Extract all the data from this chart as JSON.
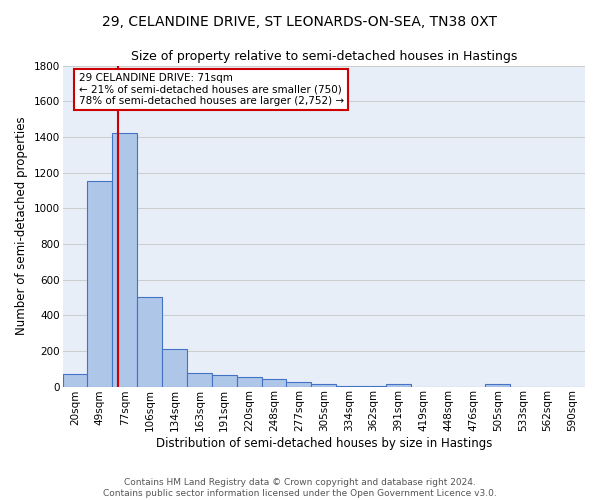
{
  "title_line1": "29, CELANDINE DRIVE, ST LEONARDS-ON-SEA, TN38 0XT",
  "title_line2": "Size of property relative to semi-detached houses in Hastings",
  "xlabel": "Distribution of semi-detached houses by size in Hastings",
  "ylabel": "Number of semi-detached properties",
  "categories": [
    "20sqm",
    "49sqm",
    "77sqm",
    "106sqm",
    "134sqm",
    "163sqm",
    "191sqm",
    "220sqm",
    "248sqm",
    "277sqm",
    "305sqm",
    "334sqm",
    "362sqm",
    "391sqm",
    "419sqm",
    "448sqm",
    "476sqm",
    "505sqm",
    "533sqm",
    "562sqm",
    "590sqm"
  ],
  "values": [
    70,
    1150,
    1420,
    500,
    210,
    75,
    65,
    55,
    40,
    25,
    12,
    5,
    3,
    12,
    0,
    0,
    0,
    12,
    0,
    0,
    0
  ],
  "bar_color": "#aec6e8",
  "bar_edge_color": "#4472c4",
  "bg_color": "#e8eef8",
  "grid_color": "#cccccc",
  "property_line_x": 1.72,
  "property_line_color": "#cc0000",
  "annotation_text": "29 CELANDINE DRIVE: 71sqm\n← 21% of semi-detached houses are smaller (750)\n78% of semi-detached houses are larger (2,752) →",
  "annotation_box_color": "#ffffff",
  "annotation_box_edge": "#cc0000",
  "ylim": [
    0,
    1800
  ],
  "yticks": [
    0,
    200,
    400,
    600,
    800,
    1000,
    1200,
    1400,
    1600,
    1800
  ],
  "footnote": "Contains HM Land Registry data © Crown copyright and database right 2024.\nContains public sector information licensed under the Open Government Licence v3.0.",
  "title_fontsize": 10,
  "subtitle_fontsize": 9,
  "axis_label_fontsize": 8.5,
  "tick_fontsize": 7.5,
  "annotation_fontsize": 7.5,
  "footnote_fontsize": 6.5
}
